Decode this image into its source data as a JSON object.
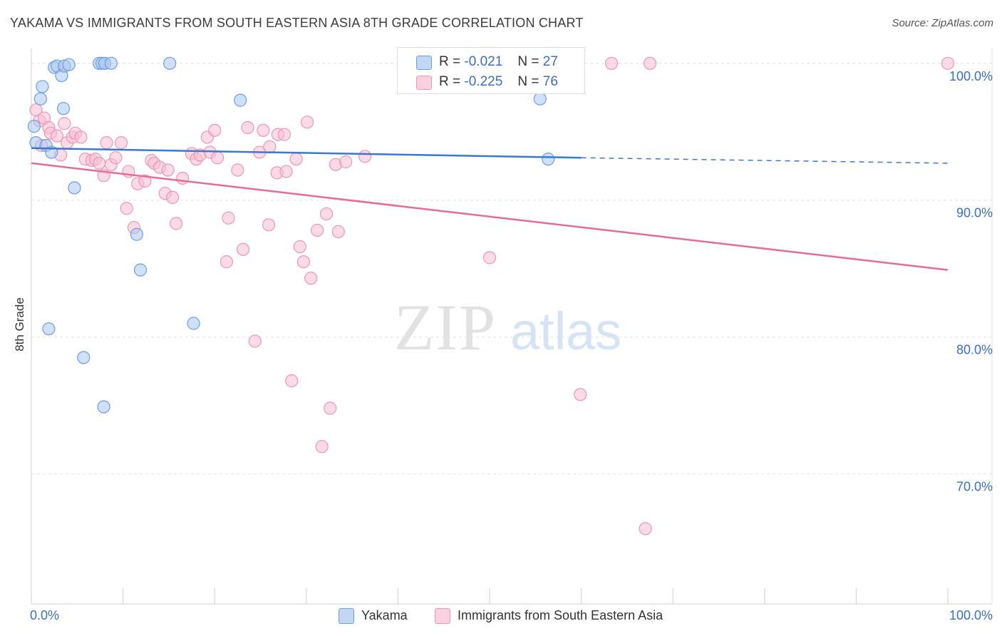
{
  "title": "YAKAMA VS IMMIGRANTS FROM SOUTH EASTERN ASIA 8TH GRADE CORRELATION CHART",
  "source": "Source: ZipAtlas.com",
  "watermark": {
    "zip": "ZIP",
    "atlas": "atlas"
  },
  "legend": {
    "rows": [
      {
        "r_label": "R =",
        "r_value": "-0.021",
        "n_label": "N =",
        "n_value": "27"
      },
      {
        "r_label": "R =",
        "r_value": "-0.225",
        "n_label": "N =",
        "n_value": "76"
      }
    ]
  },
  "bottom_legend": [
    "Yakama",
    "Immigrants from South Eastern Asia"
  ],
  "colors": {
    "yakama_fill": "#a9c6f0",
    "yakama_stroke": "#6d9fe0",
    "yakama_line": "#3a78d4",
    "sea_fill": "#f7c0d2",
    "sea_stroke": "#ee95b3",
    "sea_line": "#e46c97",
    "axis_text": "#3a6fc4",
    "grid": "#e3e3e3"
  },
  "chart_data": {
    "type": "scatter",
    "title": "YAKAMA VS IMMIGRANTS FROM SOUTH EASTERN ASIA 8TH GRADE CORRELATION CHART",
    "xlabel": "",
    "ylabel": "8th Grade",
    "xlim": [
      0,
      100
    ],
    "ylim": [
      60.5,
      101.5
    ],
    "x_tick_labels": [
      "0.0%",
      "100.0%"
    ],
    "y_ticks": [
      70,
      80,
      90,
      100
    ],
    "y_tick_labels": [
      "70.0%",
      "80.0%",
      "90.0%",
      "100.0%"
    ],
    "grid": true,
    "legend_position": "top-center",
    "series": [
      {
        "name": "Yakama",
        "R": -0.021,
        "N": 27,
        "trend": {
          "x0": 0,
          "y0": 93.8,
          "x1": 60,
          "y1": 93.1,
          "dashed_to_x": 100,
          "dashed_to_y": 92.7
        },
        "points": [
          [
            0.3,
            95.4
          ],
          [
            0.5,
            94.2
          ],
          [
            1.0,
            97.4
          ],
          [
            1.2,
            98.3
          ],
          [
            1.6,
            94.0
          ],
          [
            2.2,
            93.5
          ],
          [
            2.5,
            99.7
          ],
          [
            2.8,
            99.8
          ],
          [
            3.3,
            99.1
          ],
          [
            3.5,
            96.7
          ],
          [
            3.6,
            99.8
          ],
          [
            4.1,
            99.9
          ],
          [
            7.4,
            100.0
          ],
          [
            7.7,
            100.0
          ],
          [
            8.0,
            100.0
          ],
          [
            8.7,
            100.0
          ],
          [
            15.1,
            100.0
          ],
          [
            4.7,
            90.9
          ],
          [
            11.5,
            87.5
          ],
          [
            11.9,
            84.9
          ],
          [
            1.9,
            80.6
          ],
          [
            5.7,
            78.5
          ],
          [
            7.9,
            74.9
          ],
          [
            17.7,
            81.0
          ],
          [
            22.8,
            97.3
          ],
          [
            55.5,
            97.4
          ],
          [
            56.4,
            93.0
          ]
        ]
      },
      {
        "name": "Immigrants from South Eastern Asia",
        "R": -0.225,
        "N": 76,
        "trend": {
          "x0": 0,
          "y0": 92.7,
          "x1": 100,
          "y1": 84.9
        },
        "points": [
          [
            0.5,
            96.6
          ],
          [
            0.9,
            95.8
          ],
          [
            1.4,
            96.0
          ],
          [
            1.9,
            95.3
          ],
          [
            2.1,
            94.9
          ],
          [
            3.6,
            95.6
          ],
          [
            2.8,
            94.7
          ],
          [
            3.2,
            93.3
          ],
          [
            3.9,
            94.2
          ],
          [
            4.5,
            94.6
          ],
          [
            4.8,
            94.9
          ],
          [
            5.4,
            94.6
          ],
          [
            5.9,
            93.0
          ],
          [
            6.6,
            92.9
          ],
          [
            7.0,
            93.0
          ],
          [
            7.4,
            92.7
          ],
          [
            7.9,
            91.8
          ],
          [
            8.2,
            94.2
          ],
          [
            8.7,
            92.6
          ],
          [
            9.2,
            93.1
          ],
          [
            9.8,
            94.2
          ],
          [
            10.6,
            92.1
          ],
          [
            10.4,
            89.4
          ],
          [
            11.2,
            88.0
          ],
          [
            11.6,
            91.2
          ],
          [
            12.4,
            91.4
          ],
          [
            13.1,
            92.9
          ],
          [
            13.4,
            92.7
          ],
          [
            14.0,
            92.4
          ],
          [
            14.6,
            90.5
          ],
          [
            14.9,
            92.2
          ],
          [
            15.4,
            90.2
          ],
          [
            15.8,
            88.3
          ],
          [
            16.5,
            91.6
          ],
          [
            17.5,
            93.4
          ],
          [
            18.0,
            93.0
          ],
          [
            18.4,
            93.3
          ],
          [
            19.2,
            94.6
          ],
          [
            19.5,
            93.5
          ],
          [
            20.0,
            95.1
          ],
          [
            20.3,
            93.1
          ],
          [
            21.3,
            85.5
          ],
          [
            21.5,
            88.7
          ],
          [
            22.5,
            92.2
          ],
          [
            23.1,
            86.4
          ],
          [
            23.6,
            95.3
          ],
          [
            24.4,
            79.7
          ],
          [
            24.9,
            93.5
          ],
          [
            25.3,
            95.1
          ],
          [
            26.0,
            93.9
          ],
          [
            25.9,
            88.2
          ],
          [
            26.8,
            92.0
          ],
          [
            26.9,
            94.8
          ],
          [
            27.6,
            94.8
          ],
          [
            27.8,
            92.1
          ],
          [
            28.4,
            76.8
          ],
          [
            28.9,
            93.0
          ],
          [
            29.3,
            86.6
          ],
          [
            29.7,
            85.5
          ],
          [
            30.1,
            95.7
          ],
          [
            30.5,
            84.3
          ],
          [
            31.2,
            87.8
          ],
          [
            32.2,
            89.0
          ],
          [
            32.6,
            74.8
          ],
          [
            33.2,
            92.6
          ],
          [
            33.5,
            87.7
          ],
          [
            34.3,
            92.8
          ],
          [
            36.4,
            93.2
          ],
          [
            31.7,
            72.0
          ],
          [
            50.0,
            85.8
          ],
          [
            59.9,
            75.8
          ],
          [
            63.3,
            100.0
          ],
          [
            67.5,
            100.0
          ],
          [
            67.0,
            66.0
          ],
          [
            1.1,
            94.0
          ],
          [
            100.0,
            100.0
          ]
        ]
      }
    ]
  }
}
